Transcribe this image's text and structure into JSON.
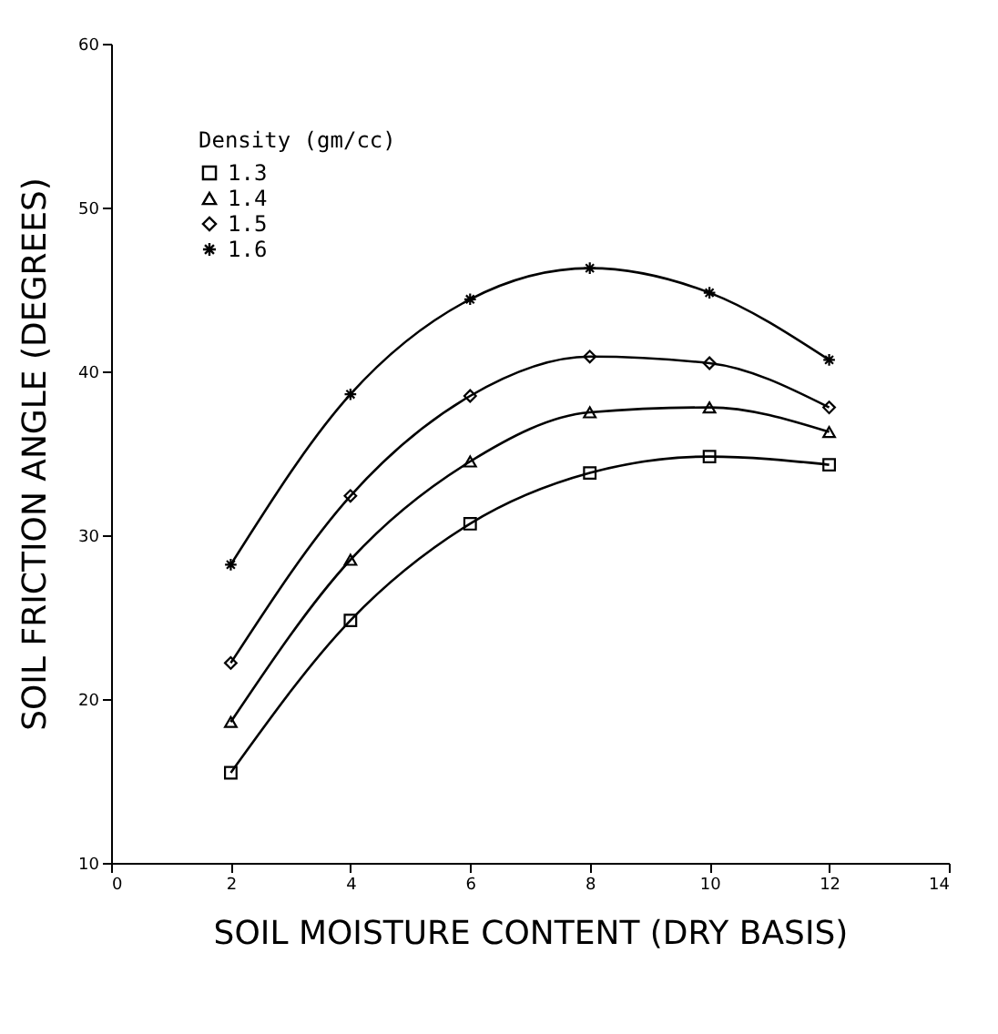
{
  "chart_data": {
    "type": "line",
    "xlabel": "SOIL MOISTURE CONTENT (DRY BASIS)",
    "ylabel": "SOIL FRICTION ANGLE (DEGREES)",
    "legend_title": "Density (gm/cc)",
    "x": [
      2,
      4,
      6,
      8,
      10,
      12
    ],
    "series": [
      {
        "name": "1.3",
        "color": "#000000",
        "marker": "square",
        "values": [
          15.5,
          24.8,
          30.7,
          33.8,
          34.8,
          34.3
        ]
      },
      {
        "name": "1.4",
        "color": "#000000",
        "marker": "triangle",
        "values": [
          18.6,
          28.5,
          34.5,
          37.5,
          37.8,
          36.3
        ]
      },
      {
        "name": "1.5",
        "color": "#000000",
        "marker": "diamond",
        "values": [
          22.2,
          32.4,
          38.5,
          40.9,
          40.5,
          37.8
        ]
      },
      {
        "name": "1.6",
        "color": "#000000",
        "marker": "cross",
        "values": [
          28.2,
          38.6,
          44.4,
          46.3,
          44.8,
          40.7
        ]
      }
    ],
    "xlim": [
      0,
      14
    ],
    "xticks": [
      0,
      2,
      4,
      6,
      8,
      10,
      12,
      14
    ],
    "ylim": [
      10,
      60
    ],
    "yticks": [
      10,
      20,
      30,
      40,
      50,
      60
    ],
    "grid": false,
    "legend": "top left",
    "line_style": "solid"
  }
}
